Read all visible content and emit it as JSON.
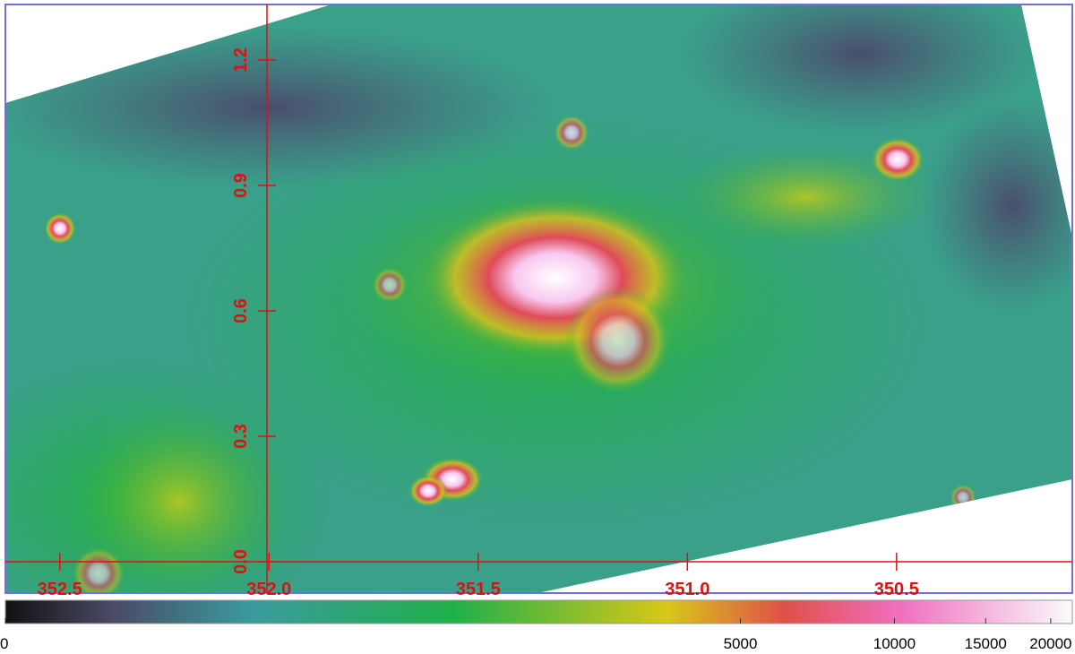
{
  "chart_data": {
    "type": "image",
    "xlim": [
      352.63,
      350.08
    ],
    "ylim": [
      -0.075,
      1.333
    ],
    "xticks": [
      {
        "value": 352.5,
        "label": "352.5"
      },
      {
        "value": 352,
        "label": "352.0"
      },
      {
        "value": 351.5,
        "label": "351.5"
      },
      {
        "value": 351,
        "label": "351.0"
      },
      {
        "value": 350.5,
        "label": "350.5"
      }
    ],
    "yticks": [
      {
        "value": 0,
        "label": "0.0"
      },
      0.3,
      0.6,
      0.9,
      1.2
    ],
    "colorbar": {
      "lim": [
        0,
        22000
      ],
      "ticks": [
        0,
        5000,
        10000,
        15000,
        20000
      ],
      "scale": "log"
    }
  }
}
